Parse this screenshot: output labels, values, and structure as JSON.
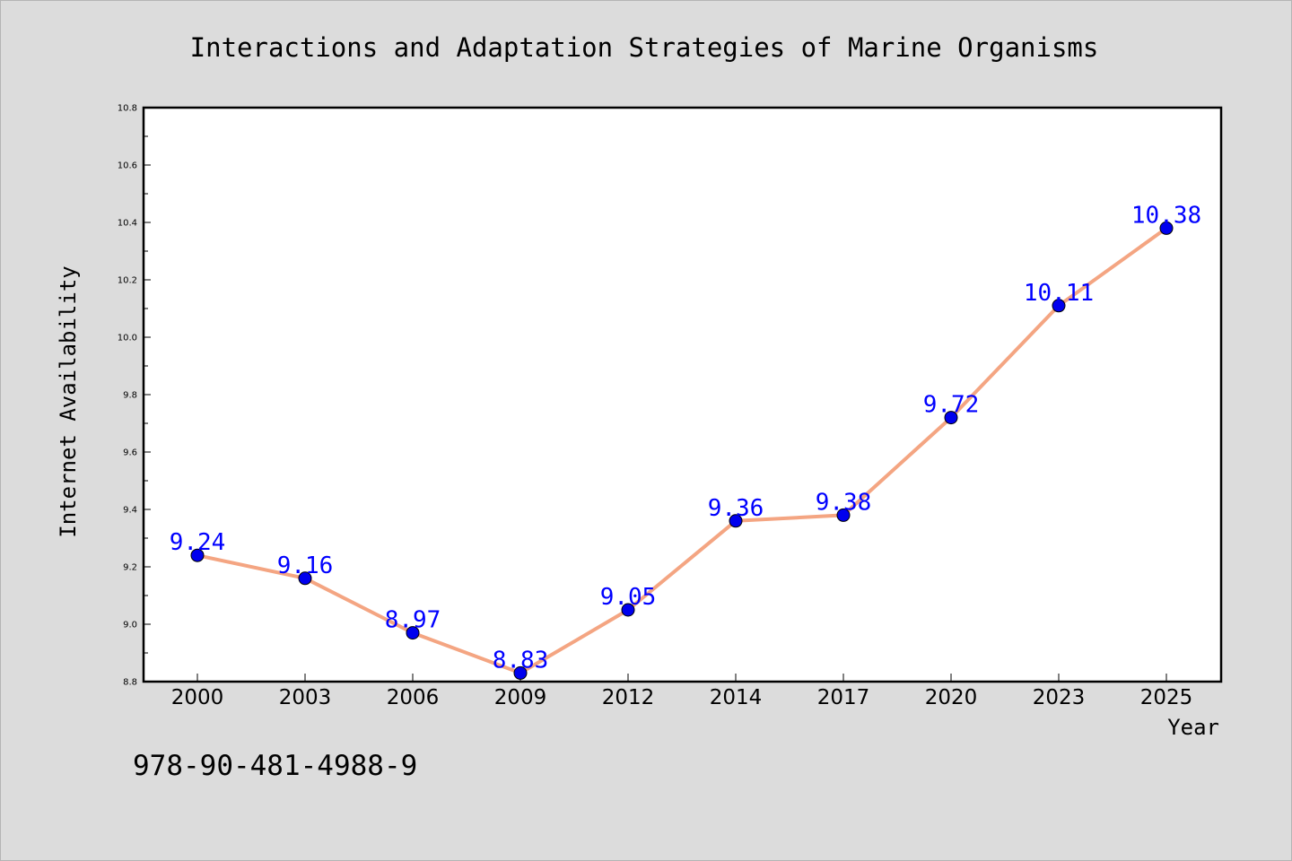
{
  "chart_data": {
    "type": "line",
    "title": "Interactions and Adaptation Strategies of Marine Organisms",
    "xlabel": "Year",
    "ylabel": "Internet Availability",
    "categories": [
      "2000",
      "2003",
      "2006",
      "2009",
      "2012",
      "2014",
      "2017",
      "2020",
      "2023",
      "2025"
    ],
    "series": [
      {
        "values": [
          9.24,
          9.16,
          8.97,
          8.83,
          9.05,
          9.36,
          9.38,
          9.72,
          10.11,
          10.38
        ],
        "line_color": "#f4a582",
        "marker_color": "#0000ee",
        "label_color": "#0000ff"
      }
    ],
    "data_labels": [
      "9.24",
      "9.16",
      "8.97",
      "8.83",
      "9.05",
      "9.36",
      "9.38",
      "9.72",
      "10.11",
      "10.38"
    ],
    "ylim": [
      8.8,
      10.8
    ],
    "yticks": [
      "8.8",
      "9.0",
      "9.2",
      "9.4",
      "9.6",
      "9.8",
      "10.0",
      "10.2",
      "10.4",
      "10.6",
      "10.8"
    ],
    "grid": false,
    "legend": "none"
  },
  "annotation": {
    "code": "978-90-481-4988-9"
  },
  "colors": {
    "background": "#dcdcdc",
    "plot_background": "#ffffff"
  }
}
